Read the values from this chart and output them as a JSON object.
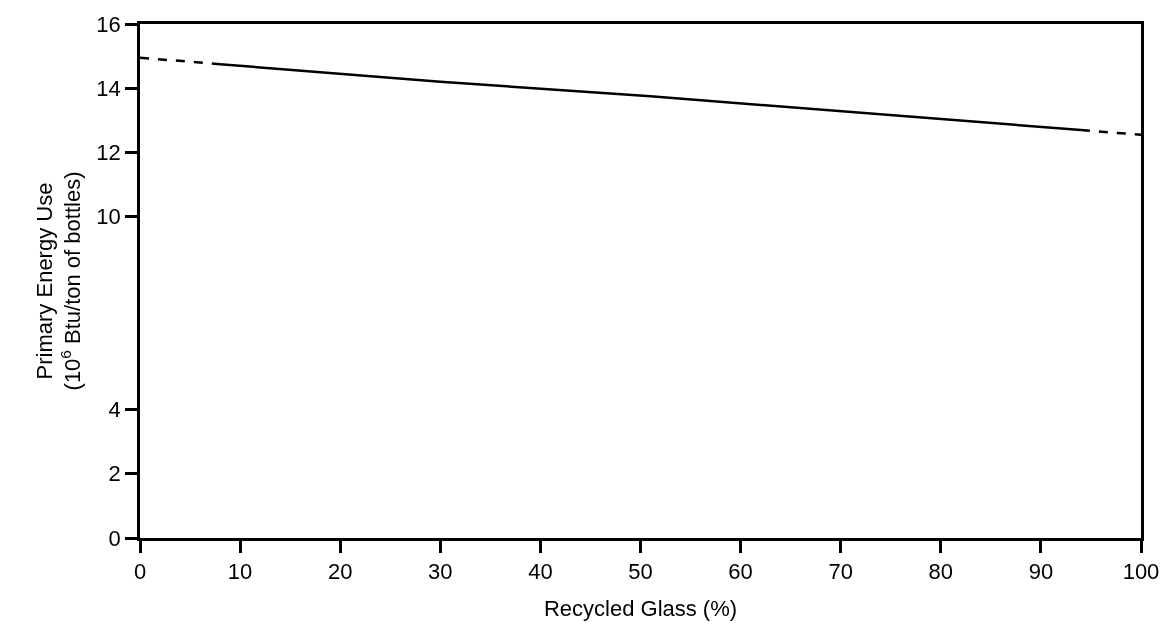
{
  "chart_data": {
    "type": "line",
    "xlabel": "Recycled Glass (%)",
    "ylabel": "Primary Energy Use\n(10$^{6}$ Btu/ton of bottles)",
    "series": [
      {
        "color": "#000000",
        "x": [
          0,
          8
        ],
        "values": [
          14.95,
          14.75
        ],
        "line_style": "dashed"
      },
      {
        "color": "#000000",
        "x": [
          8,
          30,
          51,
          94
        ],
        "values": [
          14.75,
          14.2,
          13.75,
          12.7
        ],
        "line_style": "solid"
      },
      {
        "color": "#000000",
        "x": [
          94,
          100
        ],
        "values": [
          12.7,
          12.55
        ],
        "line_style": "dashed"
      }
    ],
    "xlim": [
      0,
      100
    ],
    "xticks": [
      0,
      10,
      20,
      30,
      40,
      50,
      60,
      70,
      80,
      90,
      100
    ],
    "ylim": [
      0,
      16
    ],
    "yticks": [
      0,
      2,
      4,
      10,
      12,
      14,
      16
    ],
    "marker": "none"
  }
}
